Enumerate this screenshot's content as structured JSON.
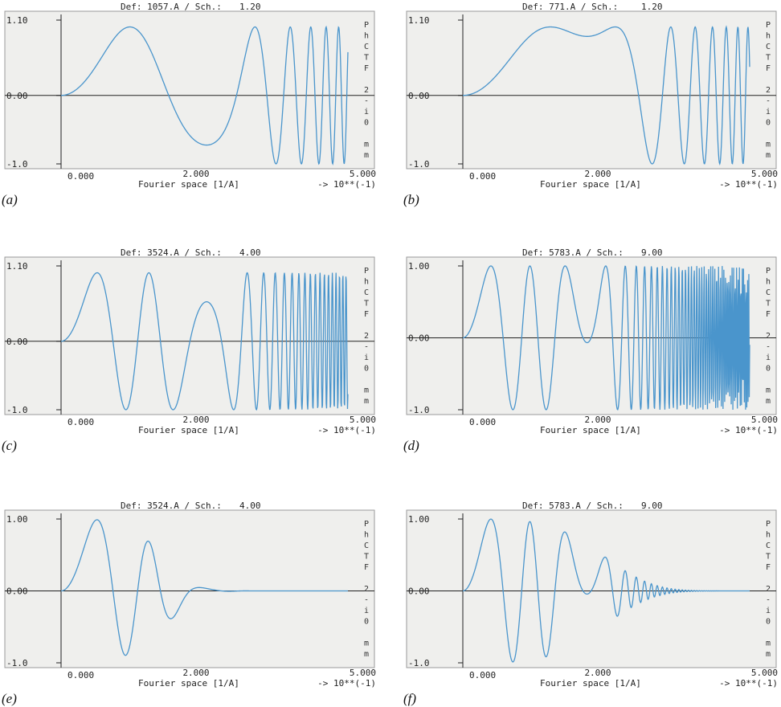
{
  "colors": {
    "background": "#efefed",
    "curve": "#4a95cc",
    "axis": "#222222",
    "frame": "#9a9a9a"
  },
  "right_label_chars": [
    "P",
    "h",
    "C",
    "T",
    "F",
    "",
    "2",
    "-",
    "i",
    "0",
    "",
    "m",
    "m"
  ],
  "chart_data": [
    {
      "type": "line",
      "caption": "(a)",
      "header_def": "Def: 1057.A / Sch.:",
      "header_val": "1.20",
      "ytick_top": "1.10",
      "ytick_mid": "0.00",
      "ytick_bot": "-1.0",
      "xtick_left": "0.000",
      "xtick_mid": "2.000",
      "xtick_right": "5.000",
      "xlabel": "Fourier space [1/A]",
      "xunit": "-> 10**(-1)",
      "xlim": [
        0,
        5
      ],
      "ylim": [
        -1,
        1.1
      ],
      "cs": 1.2,
      "df": 1057,
      "env": 0,
      "series": [
        {
          "values": []
        }
      ]
    },
    {
      "type": "line",
      "caption": "(b)",
      "header_def": "Def: 771.A / Sch.:",
      "header_val": "1.20",
      "ytick_top": "1.10",
      "ytick_mid": "0.00",
      "ytick_bot": "-1.0",
      "xtick_left": "0.000",
      "xtick_mid": "2.000",
      "xtick_right": "5.000",
      "xlabel": "Fourier space [1/A]",
      "xunit": "-> 10**(-1)",
      "xlim": [
        0,
        5
      ],
      "ylim": [
        -1,
        1.1
      ],
      "cs": 1.2,
      "df": 771,
      "env": 0,
      "series": [
        {
          "values": []
        }
      ]
    },
    {
      "type": "line",
      "caption": "(c)",
      "header_def": "Def: 3524.A / Sch.:",
      "header_val": "4.00",
      "ytick_top": "1.10",
      "ytick_mid": "0.00",
      "ytick_bot": "-1.0",
      "xtick_left": "0.000",
      "xtick_mid": "2.000",
      "xtick_right": "5.000",
      "xlabel": "Fourier space [1/A]",
      "xunit": "-> 10**(-1)",
      "xlim": [
        0,
        5
      ],
      "ylim": [
        -1,
        1.1
      ],
      "cs": 4.0,
      "df": 3524,
      "env": 0,
      "series": [
        {
          "values": []
        }
      ]
    },
    {
      "type": "line",
      "caption": "(d)",
      "header_def": "Def: 5783.A / Sch.:",
      "header_val": "9.00",
      "ytick_top": "1.00",
      "ytick_mid": "0.00",
      "ytick_bot": "-1.0",
      "xtick_left": "0.000",
      "xtick_mid": "2.000",
      "xtick_right": "5.000",
      "xlabel": "Fourier space [1/A]",
      "xunit": "-> 10**(-1)",
      "xlim": [
        0,
        5
      ],
      "ylim": [
        -1,
        1.0
      ],
      "cs": 9.0,
      "df": 5783,
      "env": 0,
      "series": [
        {
          "values": []
        }
      ]
    },
    {
      "type": "line",
      "caption": "(e)",
      "header_def": "Def: 3524.A / Sch.:",
      "header_val": "4.00",
      "ytick_top": "1.00",
      "ytick_mid": "0.00",
      "ytick_bot": "-1.0",
      "xtick_left": "0.000",
      "xtick_mid": "2.000",
      "xtick_right": "5.000",
      "xlabel": "Fourier space [1/A]",
      "xunit": "-> 10**(-1)",
      "xlim": [
        0,
        5
      ],
      "ylim": [
        -1,
        1.0
      ],
      "cs": 4.0,
      "df": 3524,
      "env": 2.2,
      "series": [
        {
          "values": []
        }
      ]
    },
    {
      "type": "line",
      "caption": "(f)",
      "header_def": "Def: 5783.A / Sch.:",
      "header_val": "9.00",
      "ytick_top": "1.00",
      "ytick_mid": "0.00",
      "ytick_bot": "-1.0",
      "xtick_left": "0.000",
      "xtick_mid": "2.000",
      "xtick_right": "5.000",
      "xlabel": "Fourier space [1/A]",
      "xunit": "-> 10**(-1)",
      "xlim": [
        0,
        5
      ],
      "ylim": [
        -1,
        1.0
      ],
      "cs": 9.0,
      "df": 5783,
      "env": 3.0,
      "series": [
        {
          "values": []
        }
      ]
    }
  ]
}
